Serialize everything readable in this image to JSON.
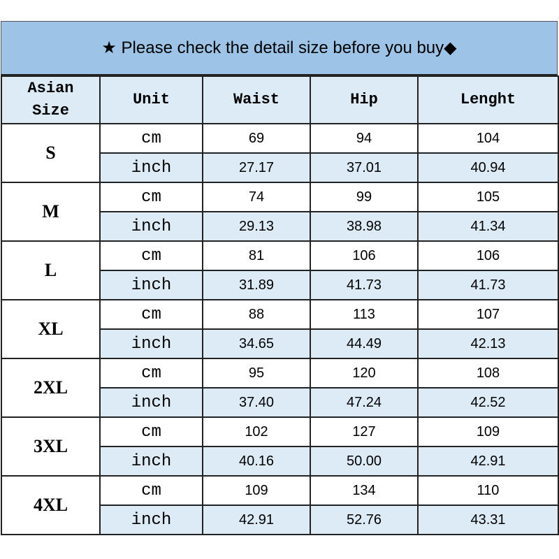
{
  "banner": {
    "text": "★ Please check the detail size before you buy◆"
  },
  "colors": {
    "banner": "#9dc3e6",
    "header": "#ddebf7",
    "inch_row": "#ddebf7"
  },
  "headers": [
    "Asian Size",
    "Unit",
    "Waist",
    "Hip",
    "Lenght"
  ],
  "rows": [
    {
      "size": "S",
      "cm": {
        "unit": "cm",
        "waist": "69",
        "hip": "94",
        "length": "104"
      },
      "inch": {
        "unit": "inch",
        "waist": "27.17",
        "hip": "37.01",
        "length": "40.94"
      }
    },
    {
      "size": "M",
      "cm": {
        "unit": "cm",
        "waist": "74",
        "hip": "99",
        "length": "105"
      },
      "inch": {
        "unit": "inch",
        "waist": "29.13",
        "hip": "38.98",
        "length": "41.34"
      }
    },
    {
      "size": "L",
      "cm": {
        "unit": "cm",
        "waist": "81",
        "hip": "106",
        "length": "106"
      },
      "inch": {
        "unit": "inch",
        "waist": "31.89",
        "hip": "41.73",
        "length": "41.73"
      }
    },
    {
      "size": "XL",
      "cm": {
        "unit": "cm",
        "waist": "88",
        "hip": "113",
        "length": "107"
      },
      "inch": {
        "unit": "inch",
        "waist": "34.65",
        "hip": "44.49",
        "length": "42.13"
      }
    },
    {
      "size": "2XL",
      "cm": {
        "unit": "cm",
        "waist": "95",
        "hip": "120",
        "length": "108"
      },
      "inch": {
        "unit": "inch",
        "waist": "37.40",
        "hip": "47.24",
        "length": "42.52"
      }
    },
    {
      "size": "3XL",
      "cm": {
        "unit": "cm",
        "waist": "102",
        "hip": "127",
        "length": "109"
      },
      "inch": {
        "unit": "inch",
        "waist": "40.16",
        "hip": "50.00",
        "length": "42.91"
      }
    },
    {
      "size": "4XL",
      "cm": {
        "unit": "cm",
        "waist": "109",
        "hip": "134",
        "length": "110"
      },
      "inch": {
        "unit": "inch",
        "waist": "42.91",
        "hip": "52.76",
        "length": "43.31"
      }
    }
  ]
}
